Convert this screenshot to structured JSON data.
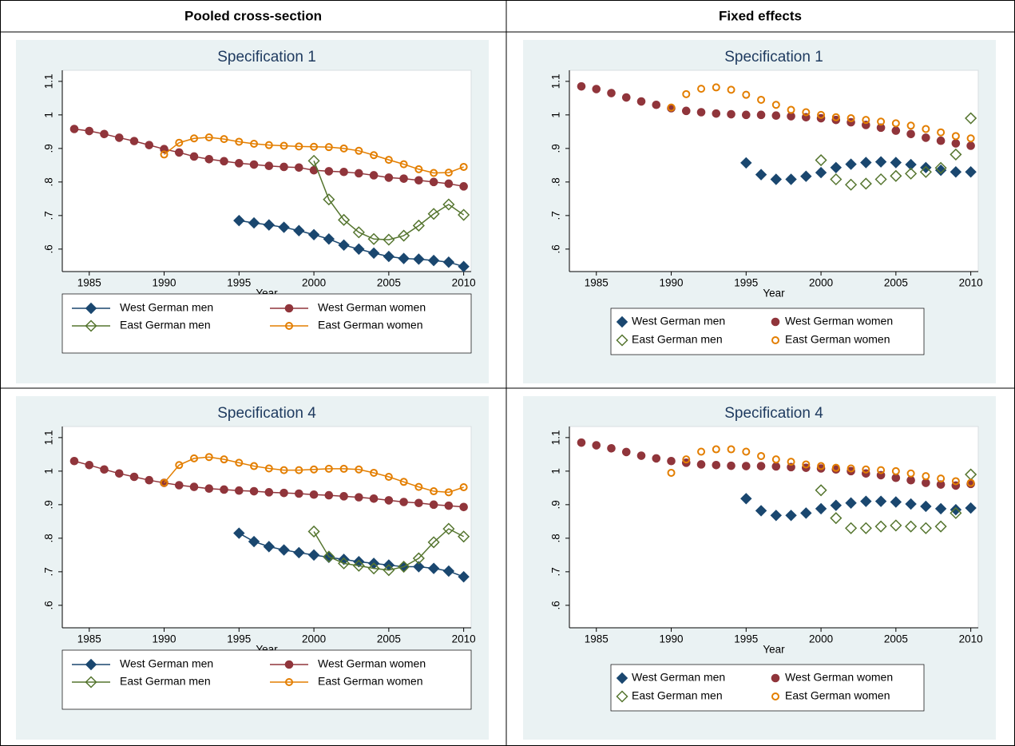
{
  "table": {
    "header": [
      "Pooled cross-section",
      "Fixed effects"
    ]
  },
  "chart_data": [
    {
      "type": "line",
      "title": "Specification 1",
      "x_label": "Year",
      "legend": "bottom",
      "xlim": [
        1983.2,
        2010.5
      ],
      "xticks": [
        1985,
        1990,
        1995,
        2000,
        2005,
        2010
      ],
      "ylim": [
        0.533,
        1.133
      ],
      "yticks": [
        {
          "value": 0.6,
          "label": ".6"
        },
        {
          "value": 0.7,
          "label": ".7"
        },
        {
          "value": 0.8,
          "label": ".8"
        },
        {
          "value": 0.9,
          "label": ".9"
        },
        1,
        1.1
      ],
      "series": [
        {
          "name": "West German men",
          "color": "#1a476f",
          "marker": "diamond",
          "filled": true,
          "x": [
            1995,
            1996,
            1997,
            1998,
            1999,
            2000,
            2001,
            2002,
            2003,
            2004,
            2005,
            2006,
            2007,
            2008,
            2009,
            2010
          ],
          "values": [
            0.685,
            0.678,
            0.672,
            0.665,
            0.655,
            0.643,
            0.63,
            0.612,
            0.6,
            0.588,
            0.578,
            0.572,
            0.57,
            0.566,
            0.561,
            0.548
          ]
        },
        {
          "name": "West German women",
          "color": "#90353b",
          "marker": "circle",
          "filled": true,
          "x": [
            1984,
            1985,
            1986,
            1987,
            1988,
            1989,
            1990,
            1991,
            1992,
            1993,
            1994,
            1995,
            1996,
            1997,
            1998,
            1999,
            2000,
            2001,
            2002,
            2003,
            2004,
            2005,
            2006,
            2007,
            2008,
            2009,
            2010
          ],
          "values": [
            0.958,
            0.952,
            0.943,
            0.932,
            0.922,
            0.91,
            0.898,
            0.888,
            0.876,
            0.868,
            0.862,
            0.856,
            0.852,
            0.848,
            0.845,
            0.843,
            0.835,
            0.832,
            0.83,
            0.826,
            0.82,
            0.813,
            0.81,
            0.805,
            0.8,
            0.795,
            0.787
          ]
        },
        {
          "name": "East German men",
          "color": "#55752f",
          "marker": "diamond",
          "filled": false,
          "x": [
            2000,
            2001,
            2002,
            2003,
            2004,
            2005,
            2006,
            2007,
            2008,
            2009,
            2010
          ],
          "values": [
            0.863,
            0.748,
            0.687,
            0.65,
            0.63,
            0.628,
            0.64,
            0.67,
            0.705,
            0.733,
            0.702
          ]
        },
        {
          "name": "East German women",
          "color": "#e37e00",
          "marker": "circle",
          "filled": false,
          "x": [
            1990,
            1991,
            1992,
            1993,
            1994,
            1995,
            1996,
            1997,
            1998,
            1999,
            2000,
            2001,
            2002,
            2003,
            2004,
            2005,
            2006,
            2007,
            2008,
            2009,
            2010
          ],
          "values": [
            0.882,
            0.917,
            0.93,
            0.933,
            0.928,
            0.92,
            0.914,
            0.91,
            0.908,
            0.906,
            0.905,
            0.904,
            0.9,
            0.893,
            0.88,
            0.866,
            0.853,
            0.838,
            0.827,
            0.828,
            0.845
          ]
        }
      ]
    },
    {
      "type": "scatter",
      "title": "Specification 1",
      "x_label": "Year",
      "legend": "bottom",
      "xlim": [
        1983.2,
        2010.5
      ],
      "xticks": [
        1985,
        1990,
        1995,
        2000,
        2005,
        2010
      ],
      "ylim": [
        0.533,
        1.133
      ],
      "yticks": [
        {
          "value": 0.6,
          "label": ".6"
        },
        {
          "value": 0.7,
          "label": ".7"
        },
        {
          "value": 0.8,
          "label": ".8"
        },
        {
          "value": 0.9,
          "label": ".9"
        },
        1,
        1.1
      ],
      "series": [
        {
          "name": "West German men",
          "color": "#1a476f",
          "marker": "diamond",
          "filled": true,
          "x": [
            1995,
            1996,
            1997,
            1998,
            1999,
            2000,
            2001,
            2002,
            2003,
            2004,
            2005,
            2006,
            2007,
            2008,
            2009,
            2010
          ],
          "values": [
            0.857,
            0.822,
            0.808,
            0.808,
            0.817,
            0.828,
            0.843,
            0.853,
            0.858,
            0.86,
            0.858,
            0.852,
            0.843,
            0.835,
            0.83,
            0.83
          ]
        },
        {
          "name": "West German women",
          "color": "#90353b",
          "marker": "circle",
          "filled": true,
          "x": [
            1984,
            1985,
            1986,
            1987,
            1988,
            1989,
            1990,
            1991,
            1992,
            1993,
            1994,
            1995,
            1996,
            1997,
            1998,
            1999,
            2000,
            2001,
            2002,
            2003,
            2004,
            2005,
            2006,
            2007,
            2008,
            2009,
            2010
          ],
          "values": [
            1.085,
            1.077,
            1.065,
            1.052,
            1.04,
            1.03,
            1.02,
            1.012,
            1.008,
            1.004,
            1.002,
            1.0,
            1.0,
            0.998,
            0.996,
            0.993,
            0.99,
            0.985,
            0.978,
            0.97,
            0.962,
            0.953,
            0.943,
            0.932,
            0.923,
            0.915,
            0.908
          ]
        },
        {
          "name": "East German men",
          "color": "#55752f",
          "marker": "diamond",
          "filled": false,
          "x": [
            2000,
            2001,
            2002,
            2003,
            2004,
            2005,
            2006,
            2007,
            2008,
            2009,
            2010
          ],
          "values": [
            0.865,
            0.808,
            0.792,
            0.795,
            0.808,
            0.818,
            0.825,
            0.83,
            0.842,
            0.882,
            0.99
          ]
        },
        {
          "name": "East German women",
          "color": "#e37e00",
          "marker": "circle",
          "filled": false,
          "x": [
            1990,
            1991,
            1992,
            1993,
            1994,
            1995,
            1996,
            1997,
            1998,
            1999,
            2000,
            2001,
            2002,
            2003,
            2004,
            2005,
            2006,
            2007,
            2008,
            2009,
            2010
          ],
          "values": [
            1.022,
            1.062,
            1.078,
            1.082,
            1.075,
            1.06,
            1.045,
            1.03,
            1.015,
            1.008,
            1.0,
            0.993,
            0.99,
            0.985,
            0.98,
            0.975,
            0.968,
            0.958,
            0.948,
            0.937,
            0.93
          ]
        }
      ]
    },
    {
      "type": "line",
      "title": "Specification 4",
      "x_label": "Year",
      "legend": "bottom",
      "xlim": [
        1983.2,
        2010.5
      ],
      "xticks": [
        1985,
        1990,
        1995,
        2000,
        2005,
        2010
      ],
      "ylim": [
        0.533,
        1.133
      ],
      "yticks": [
        {
          "value": 0.6,
          "label": ".6"
        },
        {
          "value": 0.7,
          "label": ".7"
        },
        {
          "value": 0.8,
          "label": ".8"
        },
        {
          "value": 0.9,
          "label": ".9"
        },
        1,
        1.1
      ],
      "series": [
        {
          "name": "West German men",
          "color": "#1a476f",
          "marker": "diamond",
          "filled": true,
          "x": [
            1995,
            1996,
            1997,
            1998,
            1999,
            2000,
            2001,
            2002,
            2003,
            2004,
            2005,
            2006,
            2007,
            2008,
            2009,
            2010
          ],
          "values": [
            0.815,
            0.79,
            0.775,
            0.765,
            0.757,
            0.75,
            0.743,
            0.737,
            0.73,
            0.725,
            0.72,
            0.715,
            0.715,
            0.71,
            0.702,
            0.685
          ]
        },
        {
          "name": "West German women",
          "color": "#90353b",
          "marker": "circle",
          "filled": true,
          "x": [
            1984,
            1985,
            1986,
            1987,
            1988,
            1989,
            1990,
            1991,
            1992,
            1993,
            1994,
            1995,
            1996,
            1997,
            1998,
            1999,
            2000,
            2001,
            2002,
            2003,
            2004,
            2005,
            2006,
            2007,
            2008,
            2009,
            2010
          ],
          "values": [
            1.03,
            1.018,
            1.005,
            0.993,
            0.983,
            0.973,
            0.965,
            0.958,
            0.953,
            0.948,
            0.945,
            0.942,
            0.94,
            0.937,
            0.935,
            0.933,
            0.93,
            0.928,
            0.925,
            0.922,
            0.918,
            0.913,
            0.908,
            0.905,
            0.9,
            0.897,
            0.893
          ]
        },
        {
          "name": "East German men",
          "color": "#55752f",
          "marker": "diamond",
          "filled": false,
          "x": [
            2000,
            2001,
            2002,
            2003,
            2004,
            2005,
            2006,
            2007,
            2008,
            2009,
            2010
          ],
          "values": [
            0.82,
            0.745,
            0.725,
            0.718,
            0.71,
            0.705,
            0.715,
            0.74,
            0.788,
            0.828,
            0.805
          ]
        },
        {
          "name": "East German women",
          "color": "#e37e00",
          "marker": "circle",
          "filled": false,
          "x": [
            1990,
            1991,
            1992,
            1993,
            1994,
            1995,
            1996,
            1997,
            1998,
            1999,
            2000,
            2001,
            2002,
            2003,
            2004,
            2005,
            2006,
            2007,
            2008,
            2009,
            2010
          ],
          "values": [
            0.965,
            1.018,
            1.038,
            1.042,
            1.035,
            1.025,
            1.015,
            1.008,
            1.003,
            1.003,
            1.005,
            1.007,
            1.007,
            1.005,
            0.995,
            0.983,
            0.968,
            0.953,
            0.94,
            0.937,
            0.952
          ]
        }
      ]
    },
    {
      "type": "scatter",
      "title": "Specification 4",
      "x_label": "Year",
      "legend": "bottom",
      "xlim": [
        1983.2,
        2010.5
      ],
      "xticks": [
        1985,
        1990,
        1995,
        2000,
        2005,
        2010
      ],
      "ylim": [
        0.533,
        1.133
      ],
      "yticks": [
        {
          "value": 0.6,
          "label": ".6"
        },
        {
          "value": 0.7,
          "label": ".7"
        },
        {
          "value": 0.8,
          "label": ".8"
        },
        {
          "value": 0.9,
          "label": ".9"
        },
        1,
        1.1
      ],
      "series": [
        {
          "name": "West German men",
          "color": "#1a476f",
          "marker": "diamond",
          "filled": true,
          "x": [
            1995,
            1996,
            1997,
            1998,
            1999,
            2000,
            2001,
            2002,
            2003,
            2004,
            2005,
            2006,
            2007,
            2008,
            2009,
            2010
          ],
          "values": [
            0.918,
            0.882,
            0.868,
            0.868,
            0.875,
            0.888,
            0.898,
            0.905,
            0.91,
            0.91,
            0.908,
            0.902,
            0.895,
            0.888,
            0.885,
            0.89
          ]
        },
        {
          "name": "West German women",
          "color": "#90353b",
          "marker": "circle",
          "filled": true,
          "x": [
            1984,
            1985,
            1986,
            1987,
            1988,
            1989,
            1990,
            1991,
            1992,
            1993,
            1994,
            1995,
            1996,
            1997,
            1998,
            1999,
            2000,
            2001,
            2002,
            2003,
            2004,
            2005,
            2006,
            2007,
            2008,
            2009,
            2010
          ],
          "values": [
            1.085,
            1.077,
            1.068,
            1.057,
            1.046,
            1.038,
            1.03,
            1.025,
            1.02,
            1.018,
            1.016,
            1.015,
            1.015,
            1.014,
            1.012,
            1.01,
            1.008,
            1.005,
            1.0,
            0.993,
            0.988,
            0.98,
            0.973,
            0.965,
            0.96,
            0.957,
            0.962
          ]
        },
        {
          "name": "East German men",
          "color": "#55752f",
          "marker": "diamond",
          "filled": false,
          "x": [
            2000,
            2001,
            2002,
            2003,
            2004,
            2005,
            2006,
            2007,
            2008,
            2009,
            2010
          ],
          "values": [
            0.943,
            0.86,
            0.83,
            0.83,
            0.835,
            0.838,
            0.835,
            0.83,
            0.835,
            0.875,
            0.99
          ]
        },
        {
          "name": "East German women",
          "color": "#e37e00",
          "marker": "circle",
          "filled": false,
          "x": [
            1990,
            1991,
            1992,
            1993,
            1994,
            1995,
            1996,
            1997,
            1998,
            1999,
            2000,
            2001,
            2002,
            2003,
            2004,
            2005,
            2006,
            2007,
            2008,
            2009,
            2010
          ],
          "values": [
            0.995,
            1.035,
            1.058,
            1.065,
            1.065,
            1.058,
            1.045,
            1.035,
            1.028,
            1.02,
            1.015,
            1.01,
            1.008,
            1.005,
            1.003,
            1.0,
            0.993,
            0.985,
            0.978,
            0.97,
            0.965
          ]
        }
      ]
    }
  ]
}
